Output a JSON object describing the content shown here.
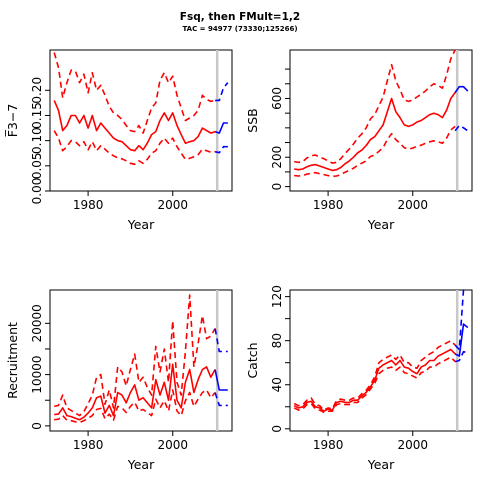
{
  "title": "Fsq, then FMult=1,2",
  "subtitle": "TAC = 94977 (73330;125266)",
  "colors": {
    "historic": "#ff0000",
    "projection": "#0000ff",
    "marker": "#c8c8c8"
  },
  "chart_data": [
    {
      "type": "line",
      "ylabel": "F̅3−7",
      "xlabel": "Year",
      "xlim": [
        1971,
        2014
      ],
      "ylim": [
        0,
        0.28
      ],
      "yticks": [
        0.0,
        0.1,
        0.2
      ],
      "ytick_labels": [
        "0.00",
        "0.10",
        "0.20"
      ],
      "yticks_minor": [
        0.05,
        0.15
      ],
      "ytick_minor_labels": [
        "0.05",
        "0.15"
      ],
      "xticks": [
        1980,
        2000
      ],
      "xtick_labels": [
        "1980",
        "2000"
      ],
      "marker_year": 2010.5,
      "x": [
        1972,
        1973,
        1974,
        1975,
        1976,
        1977,
        1978,
        1979,
        1980,
        1981,
        1982,
        1983,
        1984,
        1985,
        1986,
        1987,
        1988,
        1989,
        1990,
        1991,
        1992,
        1993,
        1994,
        1995,
        1996,
        1997,
        1998,
        1999,
        2000,
        2001,
        2002,
        2003,
        2004,
        2005,
        2006,
        2007,
        2008,
        2009,
        2010
      ],
      "series": [
        {
          "role": "historic",
          "style": "solid",
          "values": [
            0.18,
            0.16,
            0.12,
            0.13,
            0.15,
            0.15,
            0.135,
            0.15,
            0.125,
            0.15,
            0.12,
            0.135,
            0.125,
            0.115,
            0.105,
            0.1,
            0.098,
            0.09,
            0.082,
            0.08,
            0.09,
            0.082,
            0.095,
            0.112,
            0.118,
            0.14,
            0.155,
            0.14,
            0.155,
            0.13,
            0.112,
            0.095,
            0.098,
            0.1,
            0.108,
            0.125,
            0.12,
            0.115,
            0.118
          ]
        },
        {
          "role": "historic",
          "style": "dashed",
          "values": [
            0.275,
            0.245,
            0.185,
            0.215,
            0.24,
            0.238,
            0.215,
            0.232,
            0.195,
            0.235,
            0.2,
            0.21,
            0.19,
            0.168,
            0.155,
            0.15,
            0.142,
            0.13,
            0.12,
            0.118,
            0.13,
            0.115,
            0.14,
            0.165,
            0.175,
            0.22,
            0.235,
            0.215,
            0.228,
            0.19,
            0.165,
            0.14,
            0.145,
            0.15,
            0.16,
            0.19,
            0.182,
            0.178,
            0.18
          ]
        },
        {
          "role": "historic",
          "style": "dashed",
          "values": [
            0.12,
            0.105,
            0.08,
            0.088,
            0.1,
            0.098,
            0.09,
            0.098,
            0.082,
            0.098,
            0.08,
            0.09,
            0.083,
            0.075,
            0.07,
            0.066,
            0.064,
            0.06,
            0.055,
            0.053,
            0.06,
            0.055,
            0.063,
            0.075,
            0.08,
            0.095,
            0.105,
            0.095,
            0.105,
            0.088,
            0.075,
            0.063,
            0.065,
            0.068,
            0.072,
            0.083,
            0.08,
            0.077,
            0.078
          ]
        },
        {
          "role": "projection",
          "style": "solid",
          "x": [
            2010,
            2011,
            2012,
            2013
          ],
          "values": [
            0.118,
            0.115,
            0.135,
            0.135
          ]
        },
        {
          "role": "projection",
          "style": "dashed",
          "x": [
            2010,
            2011,
            2012,
            2013
          ],
          "values": [
            0.18,
            0.18,
            0.205,
            0.215
          ]
        },
        {
          "role": "projection",
          "style": "dashed",
          "x": [
            2010,
            2011,
            2012,
            2013
          ],
          "values": [
            0.078,
            0.076,
            0.088,
            0.088
          ]
        }
      ]
    },
    {
      "type": "line",
      "ylabel": "SSB",
      "xlabel": "Year",
      "xlim": [
        1971,
        2014
      ],
      "ylim": [
        -30,
        930
      ],
      "yticks": [
        0,
        200,
        600
      ],
      "ytick_labels": [
        "0",
        "200",
        "600"
      ],
      "yticks_minor": [
        100,
        300,
        400,
        500,
        700,
        800
      ],
      "xticks": [
        1980,
        2000
      ],
      "xtick_labels": [
        "1980",
        "2000"
      ],
      "marker_year": 2010.5,
      "x": [
        1972,
        1973,
        1974,
        1975,
        1976,
        1977,
        1978,
        1979,
        1980,
        1981,
        1982,
        1983,
        1984,
        1985,
        1986,
        1987,
        1988,
        1989,
        1990,
        1991,
        1992,
        1993,
        1994,
        1995,
        1996,
        1997,
        1998,
        1999,
        2000,
        2001,
        2002,
        2003,
        2004,
        2005,
        2006,
        2007,
        2008,
        2009,
        2010
      ],
      "series": [
        {
          "role": "historic",
          "style": "solid",
          "values": [
            120,
            115,
            120,
            135,
            145,
            150,
            140,
            130,
            120,
            110,
            115,
            130,
            155,
            175,
            200,
            230,
            250,
            280,
            320,
            340,
            380,
            420,
            510,
            600,
            510,
            470,
            420,
            410,
            420,
            440,
            450,
            470,
            490,
            500,
            490,
            470,
            520,
            600,
            640
          ]
        },
        {
          "role": "historic",
          "style": "dashed",
          "values": [
            170,
            165,
            170,
            195,
            210,
            215,
            200,
            190,
            175,
            160,
            165,
            190,
            225,
            255,
            290,
            330,
            360,
            400,
            460,
            490,
            550,
            610,
            720,
            830,
            720,
            660,
            590,
            580,
            590,
            610,
            630,
            650,
            680,
            700,
            690,
            670,
            760,
            870,
            930
          ]
        },
        {
          "role": "historic",
          "style": "dashed",
          "values": [
            75,
            72,
            75,
            85,
            90,
            95,
            88,
            82,
            75,
            70,
            72,
            82,
            98,
            110,
            125,
            145,
            160,
            175,
            205,
            215,
            240,
            265,
            320,
            360,
            320,
            295,
            265,
            255,
            262,
            275,
            282,
            295,
            305,
            312,
            305,
            295,
            330,
            385,
            410
          ]
        },
        {
          "role": "projection",
          "style": "solid",
          "x": [
            2010,
            2011,
            2012,
            2013
          ],
          "values": [
            640,
            680,
            680,
            650
          ]
        },
        {
          "role": "projection",
          "style": "dashed",
          "x": [
            2010,
            2011,
            2012,
            2013
          ],
          "values": [
            380,
            415,
            400,
            380
          ]
        }
      ]
    },
    {
      "type": "line",
      "ylabel": "Recruitment",
      "xlabel": "Year",
      "xlim": [
        1971,
        2014
      ],
      "ylim": [
        -1000,
        26500
      ],
      "yticks": [
        0,
        5000,
        10000,
        15000,
        20000
      ],
      "ytick_labels": [
        "0",
        "",
        "10000",
        "",
        "20000"
      ],
      "xticks": [
        1980,
        2000
      ],
      "xtick_labels": [
        "1980",
        "2000"
      ],
      "marker_year": 2010.5,
      "x": [
        1972,
        1973,
        1974,
        1975,
        1976,
        1977,
        1978,
        1979,
        1980,
        1981,
        1982,
        1983,
        1984,
        1985,
        1986,
        1987,
        1988,
        1989,
        1990,
        1991,
        1992,
        1993,
        1994,
        1995,
        1996,
        1997,
        1998,
        1999,
        2000,
        2001,
        2002,
        2003,
        2004,
        2005,
        2006,
        2007,
        2008,
        2009,
        2010
      ],
      "series": [
        {
          "role": "historic",
          "style": "solid",
          "values": [
            2200,
            2300,
            3500,
            2000,
            1800,
            1500,
            1200,
            1700,
            2500,
            3500,
            5500,
            5800,
            2500,
            4000,
            2000,
            6500,
            6000,
            4500,
            6500,
            8000,
            5000,
            5500,
            4500,
            3500,
            9000,
            6000,
            8500,
            5000,
            12000,
            5000,
            3500,
            8500,
            11000,
            6500,
            9000,
            11000,
            11500,
            9500,
            11000
          ]
        },
        {
          "role": "historic",
          "style": "dashed",
          "values": [
            3800,
            4000,
            6000,
            3500,
            3000,
            2500,
            2000,
            2800,
            4300,
            6000,
            9500,
            10000,
            4200,
            7000,
            3500,
            11500,
            10500,
            7800,
            11000,
            14000,
            8500,
            9500,
            7500,
            6000,
            15500,
            10500,
            15000,
            8500,
            20500,
            8500,
            6000,
            14500,
            25500,
            11500,
            16000,
            21500,
            17000,
            17500,
            19000
          ]
        },
        {
          "role": "historic",
          "style": "dashed",
          "values": [
            1200,
            1300,
            2000,
            1100,
            1000,
            800,
            700,
            1000,
            1500,
            2000,
            3200,
            3400,
            1400,
            2300,
            1100,
            3800,
            3500,
            2600,
            3800,
            4600,
            2900,
            3200,
            2600,
            2000,
            5200,
            3500,
            4900,
            2900,
            7000,
            2900,
            2000,
            4900,
            6500,
            3800,
            5200,
            6500,
            7000,
            5500,
            6500
          ]
        },
        {
          "role": "projection",
          "style": "solid",
          "x": [
            2010,
            2011,
            2012,
            2013
          ],
          "values": [
            11000,
            7000,
            7000,
            7000
          ]
        },
        {
          "role": "projection",
          "style": "dashed",
          "x": [
            2010,
            2011,
            2012,
            2013
          ],
          "values": [
            19000,
            14500,
            14500,
            14500
          ]
        },
        {
          "role": "projection",
          "style": "dashed",
          "x": [
            2010,
            2011,
            2012,
            2013
          ],
          "values": [
            6500,
            4000,
            4000,
            4000
          ]
        }
      ]
    },
    {
      "type": "line",
      "ylabel": "Catch",
      "xlabel": "Year",
      "xlim": [
        1971,
        2014
      ],
      "ylim": [
        -2,
        126
      ],
      "yticks": [
        0,
        40,
        80,
        120
      ],
      "ytick_labels": [
        "0",
        "40",
        "80",
        "120"
      ],
      "yticks_minor": [
        20,
        60,
        100
      ],
      "xticks": [
        1980,
        2000
      ],
      "xtick_labels": [
        "1980",
        "2000"
      ],
      "marker_year": 2010.5,
      "x": [
        1972,
        1973,
        1974,
        1975,
        1976,
        1977,
        1978,
        1979,
        1980,
        1981,
        1982,
        1983,
        1984,
        1985,
        1986,
        1987,
        1988,
        1989,
        1990,
        1991,
        1992,
        1993,
        1994,
        1995,
        1996,
        1997,
        1998,
        1999,
        2000,
        2001,
        2002,
        2003,
        2004,
        2005,
        2006,
        2007,
        2008,
        2009,
        2010
      ],
      "series": [
        {
          "role": "historic",
          "style": "solid",
          "values": [
            21,
            19,
            20,
            24,
            25,
            20,
            19,
            16,
            18,
            17,
            24,
            25,
            24,
            24,
            26,
            26,
            30,
            33,
            38,
            44,
            55,
            58,
            60,
            62,
            58,
            62,
            56,
            55,
            52,
            50,
            56,
            58,
            62,
            62,
            66,
            68,
            70,
            72,
            68
          ]
        },
        {
          "role": "historic",
          "style": "dashed",
          "values": [
            23,
            21,
            22,
            26,
            28,
            22,
            21,
            17,
            19,
            18,
            26,
            27,
            26,
            26,
            28,
            28,
            32,
            35,
            40,
            47,
            60,
            63,
            65,
            67,
            63,
            67,
            60,
            60,
            56,
            55,
            62,
            65,
            68,
            70,
            74,
            76,
            78,
            80,
            76
          ]
        },
        {
          "role": "historic",
          "style": "dashed",
          "values": [
            19,
            17,
            18,
            22,
            23,
            18,
            17,
            15,
            16,
            16,
            22,
            23,
            22,
            22,
            24,
            24,
            28,
            31,
            36,
            41,
            50,
            53,
            55,
            56,
            53,
            56,
            51,
            50,
            48,
            46,
            51,
            52,
            56,
            56,
            59,
            61,
            63,
            65,
            61
          ]
        },
        {
          "role": "projection",
          "style": "solid",
          "x": [
            2010,
            2011,
            2012,
            2013
          ],
          "values": [
            68,
            66,
            95,
            92
          ]
        },
        {
          "role": "projection",
          "style": "dashed",
          "x": [
            2010,
            2011,
            2012,
            2013
          ],
          "values": [
            76,
            72,
            126,
            126
          ]
        },
        {
          "role": "projection",
          "style": "dashed",
          "x": [
            2010,
            2011,
            2012,
            2013
          ],
          "values": [
            61,
            62,
            70,
            69
          ]
        }
      ]
    }
  ]
}
